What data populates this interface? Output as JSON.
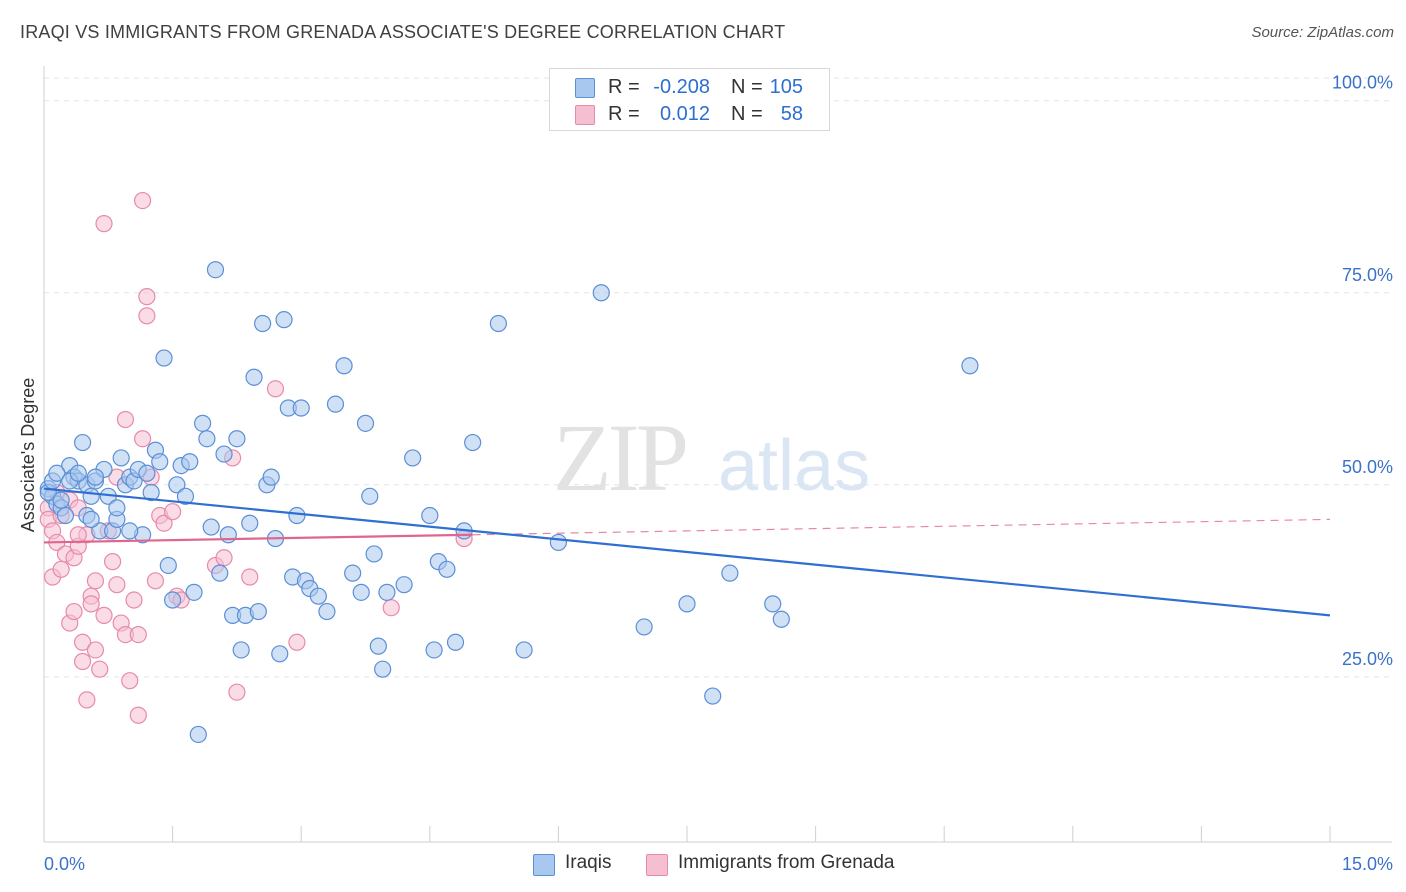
{
  "title": "IRAQI VS IMMIGRANTS FROM GRENADA ASSOCIATE'S DEGREE CORRELATION CHART",
  "source": "Source: ZipAtlas.com",
  "watermark": {
    "zip": "ZIP",
    "atlas": "atlas"
  },
  "legend_top": {
    "r_label": "R =",
    "n_label": "N =",
    "rows": [
      {
        "r": "-0.208",
        "n": "105"
      },
      {
        "r": "0.012",
        "n": "58"
      }
    ]
  },
  "bottom_legend": [
    "Iraqis",
    "Immigrants from Grenada"
  ],
  "chart_data": {
    "type": "scatter",
    "title": "IRAQI VS IMMIGRANTS FROM GRENADA ASSOCIATE'S DEGREE CORRELATION CHART",
    "xlabel": "",
    "ylabel": "Associate's Degree",
    "xlim": [
      0,
      15
    ],
    "ylim": [
      3.5,
      104
    ],
    "x_tick_labels": [
      "0.0%",
      "15.0%"
    ],
    "y_ticks": [
      25,
      50,
      75,
      100
    ],
    "y_tick_labels": [
      "25.0%",
      "50.0%",
      "75.0%",
      "100.0%"
    ],
    "grid": true,
    "legend_position": "top-center",
    "colors": {
      "iraqis_fill": "#a9c8ef",
      "iraqis_edge": "#5b8fd6",
      "iraqis_line": "#2f6fd2",
      "grenada_fill": "#f6bfd1",
      "grenada_edge": "#e88aaa",
      "grenada_line": "#e0668f",
      "axis_text": "#3a72c9"
    },
    "series": [
      {
        "name": "Iraqis",
        "r": -0.208,
        "n": 105,
        "trend": {
          "x": [
            0,
            15
          ],
          "y": [
            49.5,
            33.0
          ]
        },
        "points": [
          [
            0.05,
            49.5
          ],
          [
            0.1,
            48.5
          ],
          [
            0.15,
            47.5
          ],
          [
            0.2,
            47
          ],
          [
            0.25,
            46
          ],
          [
            0.3,
            52.5
          ],
          [
            0.35,
            51
          ],
          [
            0.4,
            50.5
          ],
          [
            0.45,
            55.5
          ],
          [
            0.5,
            50
          ],
          [
            0.55,
            48.5
          ],
          [
            0.6,
            50.5
          ],
          [
            0.65,
            44
          ],
          [
            0.7,
            52
          ],
          [
            0.75,
            48.5
          ],
          [
            0.8,
            44
          ],
          [
            0.85,
            45.5
          ],
          [
            0.9,
            53.5
          ],
          [
            0.95,
            50
          ],
          [
            1.0,
            51
          ],
          [
            1.05,
            50.5
          ],
          [
            1.1,
            52
          ],
          [
            1.15,
            43.5
          ],
          [
            1.2,
            51.5
          ],
          [
            1.25,
            49
          ],
          [
            1.3,
            54.5
          ],
          [
            1.35,
            53
          ],
          [
            1.4,
            66.5
          ],
          [
            1.45,
            39.5
          ],
          [
            1.5,
            35
          ],
          [
            1.55,
            50
          ],
          [
            1.6,
            52.5
          ],
          [
            1.65,
            48.5
          ],
          [
            1.7,
            53
          ],
          [
            1.75,
            36
          ],
          [
            1.8,
            17.5
          ],
          [
            1.85,
            58
          ],
          [
            1.9,
            56
          ],
          [
            1.95,
            44.5
          ],
          [
            2.0,
            78
          ],
          [
            2.05,
            38.5
          ],
          [
            2.1,
            54
          ],
          [
            2.15,
            43.5
          ],
          [
            2.2,
            33
          ],
          [
            2.25,
            56
          ],
          [
            2.3,
            28.5
          ],
          [
            2.35,
            33
          ],
          [
            2.4,
            45
          ],
          [
            2.45,
            64
          ],
          [
            2.5,
            33.5
          ],
          [
            2.55,
            71
          ],
          [
            2.6,
            50
          ],
          [
            2.65,
            51
          ],
          [
            2.7,
            43
          ],
          [
            2.75,
            28
          ],
          [
            2.8,
            71.5
          ],
          [
            2.85,
            60
          ],
          [
            2.9,
            38
          ],
          [
            2.95,
            46
          ],
          [
            3.0,
            60
          ],
          [
            3.05,
            37.5
          ],
          [
            3.1,
            36.5
          ],
          [
            3.2,
            35.5
          ],
          [
            3.3,
            33.5
          ],
          [
            3.4,
            60.5
          ],
          [
            3.5,
            65.5
          ],
          [
            3.6,
            38.5
          ],
          [
            3.7,
            36
          ],
          [
            3.75,
            58
          ],
          [
            3.8,
            48.5
          ],
          [
            3.85,
            41
          ],
          [
            3.9,
            29
          ],
          [
            3.95,
            26
          ],
          [
            4.0,
            36
          ],
          [
            4.2,
            37
          ],
          [
            4.5,
            46
          ],
          [
            4.55,
            28.5
          ],
          [
            4.6,
            40
          ],
          [
            4.7,
            39
          ],
          [
            4.8,
            29.5
          ],
          [
            4.9,
            44
          ],
          [
            5.0,
            55.5
          ],
          [
            5.3,
            71
          ],
          [
            5.6,
            28.5
          ],
          [
            6.0,
            42.5
          ],
          [
            6.5,
            75
          ],
          [
            7.0,
            31.5
          ],
          [
            7.5,
            34.5
          ],
          [
            7.8,
            22.5
          ],
          [
            8.0,
            38.5
          ],
          [
            8.5,
            34.5
          ],
          [
            8.6,
            32.5
          ],
          [
            10.8,
            65.5
          ],
          [
            4.3,
            53.5
          ],
          [
            0.05,
            49
          ],
          [
            0.1,
            50.5
          ],
          [
            0.15,
            51.5
          ],
          [
            0.3,
            50.5
          ],
          [
            0.4,
            51.5
          ],
          [
            0.5,
            46
          ],
          [
            1.0,
            44
          ],
          [
            0.85,
            47
          ],
          [
            0.6,
            51
          ],
          [
            0.55,
            45.5
          ],
          [
            0.2,
            48
          ]
        ]
      },
      {
        "name": "Immigrants from Grenada",
        "r": 0.012,
        "n": 58,
        "trend": {
          "x": [
            0,
            5
          ],
          "y": [
            42.5,
            43.5
          ]
        },
        "trend_dashed": {
          "x": [
            5,
            15
          ],
          "y": [
            43.5,
            45.5
          ]
        },
        "points": [
          [
            0.05,
            47
          ],
          [
            0.05,
            45.5
          ],
          [
            0.1,
            38
          ],
          [
            0.1,
            44
          ],
          [
            0.15,
            49
          ],
          [
            0.15,
            42.5
          ],
          [
            0.2,
            46
          ],
          [
            0.25,
            41
          ],
          [
            0.3,
            48
          ],
          [
            0.3,
            32
          ],
          [
            0.35,
            40.5
          ],
          [
            0.35,
            33.5
          ],
          [
            0.4,
            47
          ],
          [
            0.4,
            42
          ],
          [
            0.45,
            27
          ],
          [
            0.45,
            29.5
          ],
          [
            0.5,
            43.5
          ],
          [
            0.5,
            22
          ],
          [
            0.55,
            35.5
          ],
          [
            0.55,
            34.5
          ],
          [
            0.6,
            37.5
          ],
          [
            0.6,
            28.5
          ],
          [
            0.65,
            26
          ],
          [
            0.7,
            33
          ],
          [
            0.7,
            84
          ],
          [
            0.75,
            44
          ],
          [
            0.8,
            40
          ],
          [
            0.85,
            37
          ],
          [
            0.85,
            51
          ],
          [
            0.9,
            32
          ],
          [
            0.95,
            58.5
          ],
          [
            0.95,
            30.5
          ],
          [
            1.0,
            24.5
          ],
          [
            1.05,
            35
          ],
          [
            1.1,
            20
          ],
          [
            1.1,
            30.5
          ],
          [
            1.15,
            87
          ],
          [
            1.15,
            56
          ],
          [
            1.2,
            72
          ],
          [
            1.2,
            74.5
          ],
          [
            1.25,
            51
          ],
          [
            1.3,
            37.5
          ],
          [
            1.35,
            46
          ],
          [
            1.4,
            45
          ],
          [
            1.5,
            46.5
          ],
          [
            1.55,
            35.5
          ],
          [
            1.6,
            35
          ],
          [
            2.0,
            39.5
          ],
          [
            2.1,
            40.5
          ],
          [
            2.2,
            53.5
          ],
          [
            2.25,
            23
          ],
          [
            2.4,
            38
          ],
          [
            2.7,
            62.5
          ],
          [
            2.95,
            29.5
          ],
          [
            4.05,
            34
          ],
          [
            4.9,
            43
          ],
          [
            0.2,
            39
          ],
          [
            0.4,
            43.5
          ]
        ]
      }
    ]
  }
}
